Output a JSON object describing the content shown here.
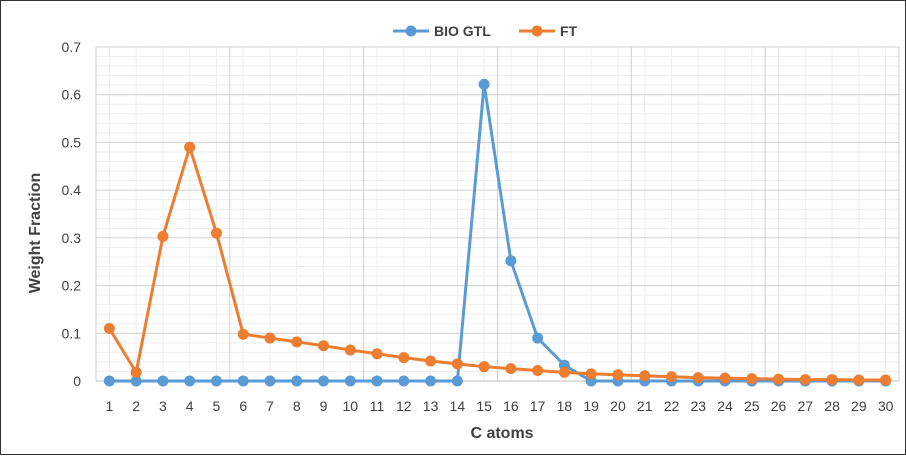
{
  "chart_data": {
    "type": "line",
    "title": "",
    "xlabel": "C atoms",
    "ylabel": "Weight Fraction",
    "x": [
      1,
      2,
      3,
      4,
      5,
      6,
      7,
      8,
      9,
      10,
      11,
      12,
      13,
      14,
      15,
      16,
      17,
      18,
      19,
      20,
      21,
      22,
      23,
      24,
      25,
      26,
      27,
      28,
      29,
      30
    ],
    "ylim": [
      0,
      0.7
    ],
    "yticks": [
      "0",
      "0.1",
      "0.2",
      "0.3",
      "0.4",
      "0.5",
      "0.6",
      "0.7"
    ],
    "grid": true,
    "legend": "top-center",
    "series": [
      {
        "name": "BIO GTL",
        "color": "#5B9BD5",
        "values": [
          0,
          0,
          0,
          0,
          0,
          0,
          0,
          0,
          0,
          0,
          0,
          0,
          0,
          0,
          0.622,
          0.252,
          0.09,
          0.033,
          0,
          0,
          0,
          0,
          0,
          0,
          0,
          0,
          0,
          0,
          0,
          0
        ]
      },
      {
        "name": "FT",
        "color": "#ED7D31",
        "values": [
          0.11,
          0.018,
          0.303,
          0.49,
          0.31,
          0.098,
          0.09,
          0.082,
          0.074,
          0.065,
          0.057,
          0.049,
          0.042,
          0.036,
          0.03,
          0.026,
          0.022,
          0.018,
          0.015,
          0.013,
          0.011,
          0.009,
          0.007,
          0.006,
          0.005,
          0.004,
          0.003,
          0.003,
          0.002,
          0.002
        ]
      }
    ]
  }
}
